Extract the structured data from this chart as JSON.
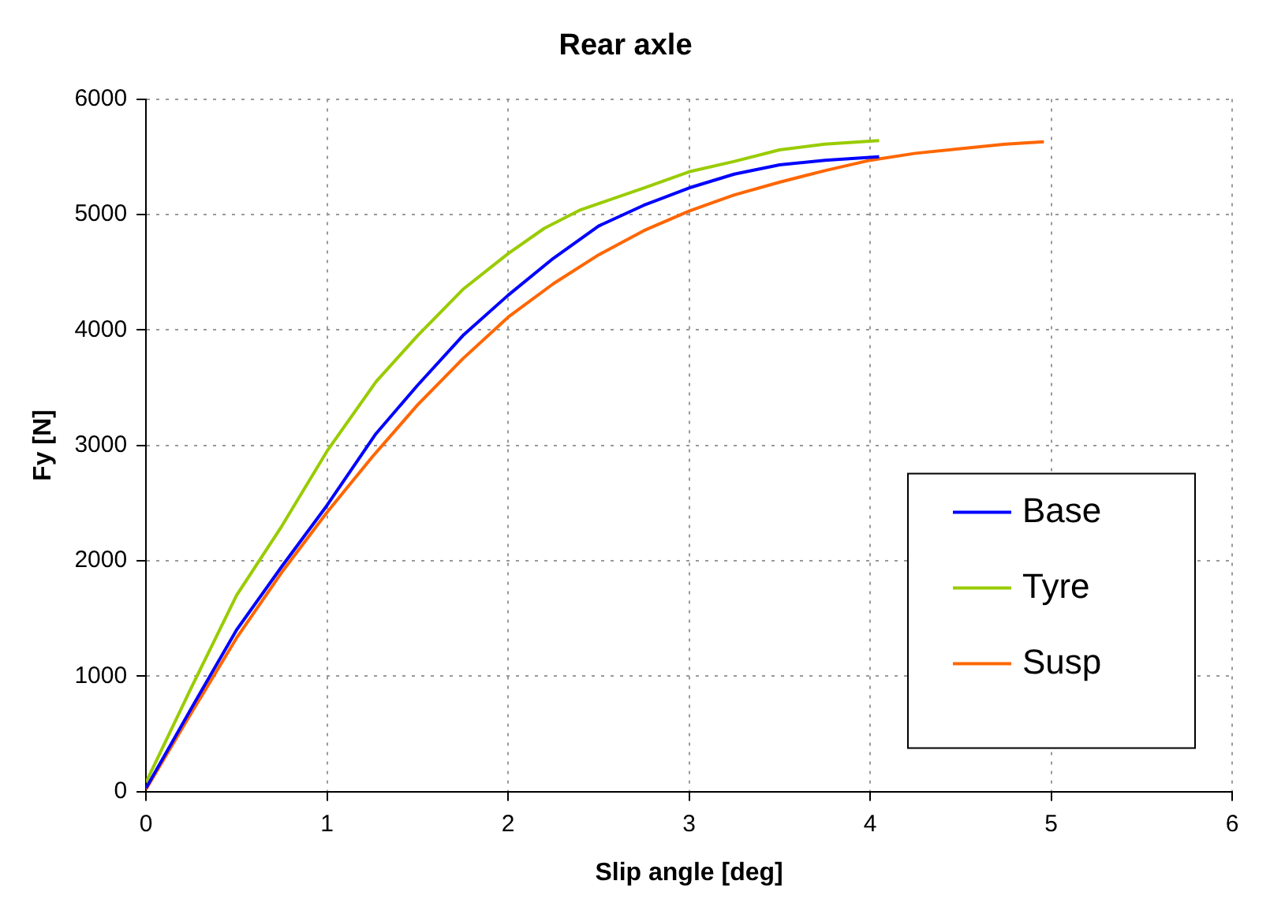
{
  "chart_data": {
    "type": "line",
    "title": "Rear axle",
    "xlabel": "Slip angle [deg]",
    "ylabel": "Fy [N]",
    "xlim": [
      0,
      6
    ],
    "xticks": [
      0,
      1,
      2,
      3,
      4,
      5,
      6
    ],
    "ylim": [
      0,
      6000
    ],
    "yticks": [
      0,
      1000,
      2000,
      3000,
      4000,
      5000,
      6000
    ],
    "grid": true,
    "legend": "bottom right",
    "marker": "none",
    "line_style": "solid",
    "series": [
      {
        "name": "Base",
        "color": "#0000ff",
        "x": [
          0,
          0.25,
          0.5,
          0.75,
          1,
          1.27,
          1.5,
          1.75,
          2,
          2.25,
          2.5,
          2.75,
          3,
          3.25,
          3.5,
          3.75,
          4.05
        ],
        "values": [
          30,
          720,
          1400,
          1950,
          2480,
          3100,
          3520,
          3950,
          4300,
          4620,
          4900,
          5080,
          5230,
          5350,
          5430,
          5470,
          5500
        ]
      },
      {
        "name": "Tyre",
        "color": "#99cc00",
        "x": [
          0,
          0.25,
          0.5,
          0.75,
          1,
          1.27,
          1.5,
          1.75,
          2,
          2.2,
          2.4,
          2.75,
          3,
          3.25,
          3.5,
          3.75,
          4.05
        ],
        "values": [
          80,
          900,
          1700,
          2300,
          2950,
          3550,
          3950,
          4350,
          4660,
          4880,
          5040,
          5230,
          5370,
          5460,
          5560,
          5610,
          5640
        ]
      },
      {
        "name": "Susp",
        "color": "#ff6600",
        "x": [
          0,
          0.25,
          0.5,
          0.75,
          1,
          1.25,
          1.5,
          1.75,
          2,
          2.25,
          2.5,
          2.75,
          3,
          3.25,
          3.5,
          3.75,
          4,
          4.25,
          4.5,
          4.75,
          4.96
        ],
        "values": [
          20,
          680,
          1330,
          1900,
          2420,
          2900,
          3350,
          3750,
          4110,
          4400,
          4650,
          4860,
          5030,
          5170,
          5280,
          5380,
          5470,
          5530,
          5570,
          5610,
          5630
        ]
      }
    ]
  }
}
